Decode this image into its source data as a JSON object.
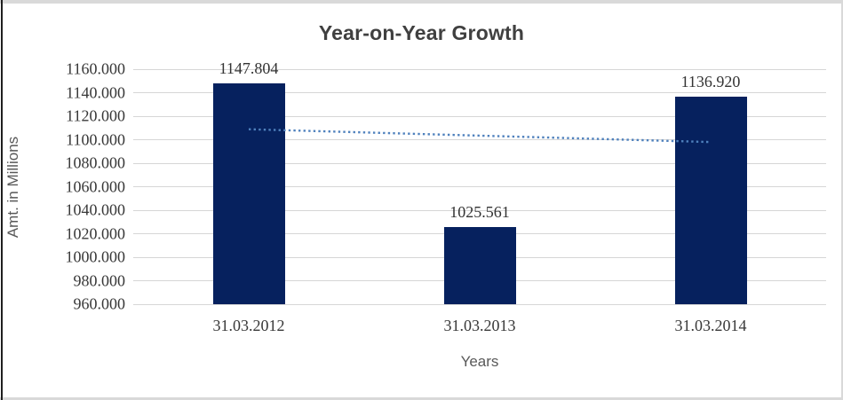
{
  "chart_data": {
    "type": "bar",
    "title": "Year-on-Year Growth",
    "categories": [
      "31.03.2012",
      "31.03.2013",
      "31.03.2014"
    ],
    "values": [
      1147.804,
      1025.561,
      1136.92
    ],
    "data_labels": [
      "1147.804",
      "1025.561",
      "1136.920"
    ],
    "xlabel": "Years",
    "ylabel": "Amt. in Millions",
    "ylim": [
      960,
      1160
    ],
    "ytick_step": 20,
    "ytick_labels": [
      "1160.000",
      "1140.000",
      "1120.000",
      "1100.000",
      "1080.000",
      "1060.000",
      "1040.000",
      "1020.000",
      "1000.000",
      "980.000",
      "960.000"
    ],
    "grid": true,
    "legend": "none",
    "colors": {
      "bar": "#06215e",
      "trendline": "#4f81bd",
      "gridline": "#d6d6d6",
      "title_text": "#404040",
      "tick_text": "#383838",
      "axis_title_text": "#595959"
    },
    "trendline": {
      "type": "linear",
      "style": "dotted",
      "start_value": 1108.9,
      "end_value": 1098.0
    }
  }
}
